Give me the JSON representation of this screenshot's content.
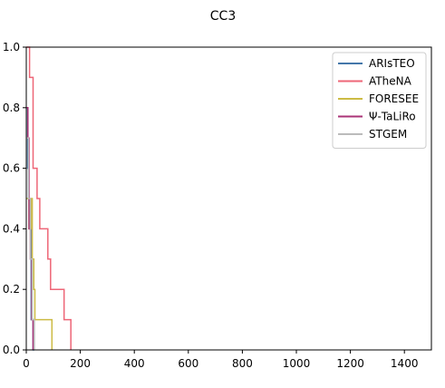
{
  "chart_data": {
    "type": "line",
    "title": "CC3",
    "xlabel": "",
    "ylabel": "",
    "xlim": [
      0,
      1500
    ],
    "ylim": [
      0,
      1.0
    ],
    "xticks": [
      "0",
      "200",
      "400",
      "600",
      "800",
      "1000",
      "1200",
      "1400"
    ],
    "xtick_values": [
      0,
      200,
      400,
      600,
      800,
      1000,
      1200,
      1400
    ],
    "yticks": [
      "0.0",
      "0.2",
      "0.4",
      "0.6",
      "0.8",
      "1.0"
    ],
    "ytick_values": [
      0,
      0.2,
      0.4,
      0.6,
      0.8,
      1.0
    ],
    "grid": false,
    "legend_position": "top-right",
    "series": [
      {
        "name": "ARIsTEO",
        "color": "#4477aa",
        "x": [
          0,
          5,
          5,
          8,
          8,
          12,
          12,
          18,
          18,
          25,
          25,
          30
        ],
        "y": [
          0.8,
          0.8,
          0.6,
          0.6,
          0.5,
          0.5,
          0.4,
          0.4,
          0.1,
          0.1,
          0.0,
          0.0
        ]
      },
      {
        "name": "ATheNA",
        "color": "#ee6677",
        "x": [
          0,
          12,
          12,
          25,
          25,
          40,
          40,
          50,
          50,
          80,
          80,
          90,
          90,
          140,
          140,
          165,
          165
        ],
        "y": [
          1.0,
          1.0,
          0.9,
          0.9,
          0.6,
          0.6,
          0.5,
          0.5,
          0.4,
          0.4,
          0.3,
          0.3,
          0.2,
          0.2,
          0.1,
          0.1,
          0.0
        ]
      },
      {
        "name": "FORESEE",
        "color": "#ccbb44",
        "x": [
          0,
          10,
          10,
          18,
          18,
          22,
          22,
          28,
          28,
          32,
          32,
          35,
          35,
          95,
          95
        ],
        "y": [
          0.5,
          0.5,
          0.4,
          0.4,
          0.5,
          0.5,
          0.3,
          0.3,
          0.2,
          0.2,
          0.1,
          0.1,
          0.1,
          0.1,
          0.0
        ]
      },
      {
        "name": "Ψ-TaLiRo",
        "color": "#aa3377",
        "x": [
          0,
          6,
          6,
          10,
          10,
          15,
          15,
          20,
          20,
          25,
          25
        ],
        "y": [
          0.8,
          0.8,
          0.7,
          0.7,
          0.4,
          0.4,
          0.3,
          0.3,
          0.1,
          0.1,
          0.0
        ]
      },
      {
        "name": "STGEM",
        "color": "#bbbbbb",
        "x": [
          0,
          8,
          8,
          15,
          15,
          22,
          22,
          30,
          30
        ],
        "y": [
          0.7,
          0.7,
          0.5,
          0.5,
          0.3,
          0.3,
          0.1,
          0.1,
          0.0
        ]
      }
    ]
  }
}
